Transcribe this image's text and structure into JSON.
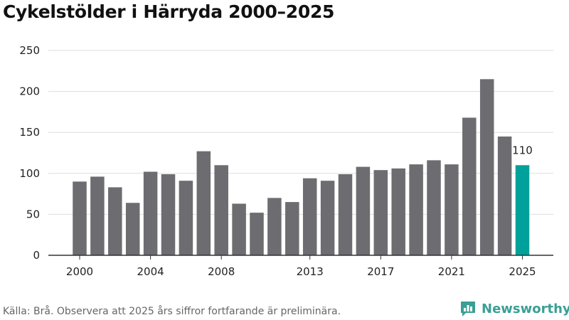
{
  "title": "Cykelstölder i Härryda 2000–2025",
  "source_note": "Källa: Brå. Observera att 2025 års siffror fortfarande är preliminära.",
  "brand": {
    "name": "Newsworthy",
    "icon": "newsworthy-logo-icon"
  },
  "colors": {
    "bar": "#6d6c71",
    "highlight": "#00a19a",
    "grid": "#dddddd",
    "axis": "#333333",
    "brand": "#3a9f94"
  },
  "chart_data": {
    "type": "bar",
    "categories": [
      "2000",
      "2001",
      "2002",
      "2003",
      "2004",
      "2005",
      "2006",
      "2007",
      "2008",
      "2009",
      "2010",
      "2011",
      "2012",
      "2013",
      "2014",
      "2015",
      "2016",
      "2017",
      "2018",
      "2019",
      "2020",
      "2021",
      "2022",
      "2023",
      "2024",
      "2025"
    ],
    "values": [
      90,
      96,
      83,
      64,
      102,
      99,
      91,
      127,
      110,
      63,
      52,
      70,
      65,
      94,
      91,
      99,
      108,
      104,
      106,
      111,
      116,
      111,
      168,
      215,
      145,
      110
    ],
    "x_tick_labels": [
      "2000",
      "2004",
      "2008",
      "2013",
      "2017",
      "2021",
      "2025"
    ],
    "y_ticks": [
      0,
      50,
      100,
      150,
      200,
      250
    ],
    "ylim": [
      0,
      250
    ],
    "highlight_category": "2025",
    "data_labels": [
      {
        "category": "2025",
        "text": "110"
      }
    ],
    "grid": true,
    "title": "Cykelstölder i Härryda 2000–2025",
    "xlabel": "",
    "ylabel": ""
  }
}
